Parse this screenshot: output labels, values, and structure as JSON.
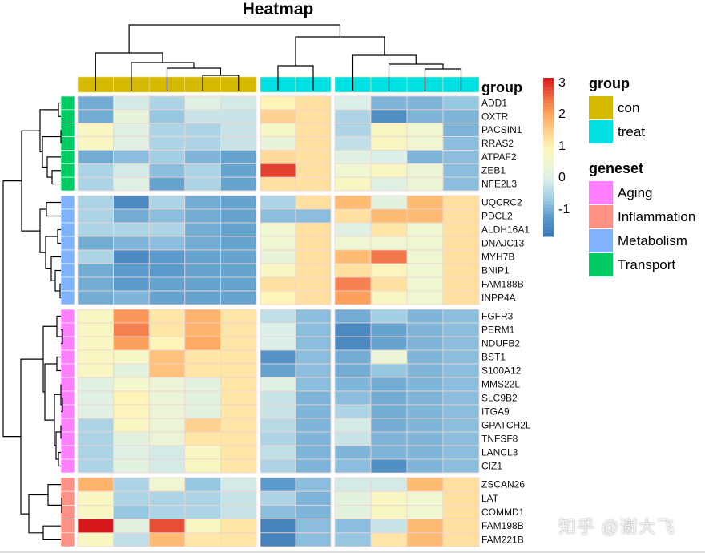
{
  "chart_data": {
    "type": "heatmap",
    "title": "Heatmap",
    "column_annotation_title": "group",
    "column_groups": [
      "con",
      "con",
      "con",
      "con",
      "con",
      "treat",
      "treat",
      "treat",
      "treat",
      "treat",
      "treat"
    ],
    "column_split_sizes": [
      5,
      2,
      4
    ],
    "row_blocks": [
      {
        "geneset": "Transport",
        "genes": [
          "ADD1",
          "OXTR",
          "PACSIN1",
          "RRAS2",
          "ATPAF2",
          "ZEB1",
          "NFE2L3"
        ]
      },
      {
        "geneset": "Metabolism",
        "genes": [
          "UQCRC2",
          "PDCL2",
          "ALDH16A1",
          "DNAJC13",
          "MYH7B",
          "BNIP1",
          "FAM188B",
          "INPP4A"
        ]
      },
      {
        "geneset": "Aging",
        "genes": [
          "FGFR3",
          "PERM1",
          "NDUFB2",
          "BST1",
          "S100A12",
          "MMS22L",
          "SLC9B2",
          "ITGA9",
          "GPATCH2L",
          "TNFSF8",
          "LANCL3",
          "CIZ1"
        ]
      },
      {
        "geneset": "Inflammation",
        "genes": [
          "ZSCAN26",
          "LAT",
          "COMMD1",
          "FAM198B",
          "FAM221B"
        ]
      }
    ],
    "values": [
      [
        -1.0,
        -0.1,
        -0.5,
        0.1,
        -0.1,
        1.0,
        1.3,
        0.0,
        -0.9,
        -0.9,
        -0.7
      ],
      [
        -1.0,
        0.3,
        -0.7,
        -0.2,
        -0.2,
        1.5,
        1.3,
        -0.5,
        -1.4,
        -0.9,
        -0.9
      ],
      [
        0.8,
        0.1,
        -0.5,
        -0.5,
        -0.2,
        0.7,
        1.3,
        -0.5,
        0.8,
        0.5,
        -0.9
      ],
      [
        0.8,
        0.1,
        -0.5,
        -0.5,
        -0.2,
        0.3,
        1.3,
        -0.3,
        0.8,
        0.5,
        -0.8
      ],
      [
        -1.0,
        -0.8,
        -0.6,
        -0.9,
        -1.1,
        1.4,
        1.3,
        0.1,
        0.0,
        -0.9,
        -0.8
      ],
      [
        -0.5,
        -0.1,
        -0.8,
        -0.5,
        -1.1,
        2.9,
        1.3,
        0.5,
        0.8,
        0.4,
        -0.8
      ],
      [
        -0.5,
        0.1,
        -1.1,
        -0.5,
        -1.1,
        1.3,
        1.3,
        0.8,
        0.1,
        0.4,
        -0.8
      ],
      [
        -0.5,
        -1.5,
        -0.5,
        -1.0,
        -1.1,
        -0.5,
        1.3,
        1.8,
        0.2,
        1.8,
        1.3
      ],
      [
        -0.5,
        -1.0,
        -0.8,
        -1.0,
        -1.1,
        -0.8,
        -0.8,
        1.3,
        1.8,
        1.8,
        1.3
      ],
      [
        -0.5,
        -0.5,
        -0.5,
        -1.0,
        -1.1,
        0.5,
        1.3,
        0.1,
        1.2,
        0.5,
        1.3
      ],
      [
        -1.0,
        -0.9,
        -0.8,
        -1.0,
        -1.1,
        0.5,
        1.3,
        0.5,
        0.5,
        0.5,
        1.3
      ],
      [
        -0.5,
        -1.5,
        -1.2,
        -1.1,
        -1.1,
        0.3,
        1.3,
        1.8,
        2.5,
        0.5,
        1.3
      ],
      [
        -1.0,
        -1.2,
        -1.2,
        -1.1,
        -1.1,
        0.8,
        1.3,
        1.3,
        0.9,
        0.5,
        1.3
      ],
      [
        -1.0,
        -1.2,
        -1.1,
        -1.1,
        -1.1,
        1.3,
        1.3,
        2.4,
        1.3,
        0.5,
        1.3
      ],
      [
        -1.0,
        -0.9,
        -1.1,
        -1.1,
        -1.1,
        1.0,
        1.3,
        2.1,
        0.8,
        0.5,
        1.3
      ],
      [
        0.8,
        2.2,
        1.2,
        1.9,
        1.2,
        -0.3,
        -0.8,
        -1.0,
        -0.6,
        -0.9,
        -0.8
      ],
      [
        0.8,
        2.4,
        1.2,
        1.9,
        1.2,
        0.0,
        -0.8,
        -1.5,
        -1.1,
        -0.9,
        -0.8
      ],
      [
        0.8,
        2.1,
        1.0,
        2.0,
        1.2,
        0.0,
        -0.8,
        -1.5,
        -1.1,
        -0.9,
        -0.8
      ],
      [
        0.8,
        0.7,
        1.7,
        1.2,
        1.2,
        -1.3,
        -0.8,
        -1.0,
        0.4,
        -0.9,
        -0.8
      ],
      [
        0.8,
        0.2,
        1.7,
        1.2,
        1.2,
        -1.1,
        -0.8,
        -1.0,
        -0.7,
        -0.9,
        -0.8
      ],
      [
        0.1,
        0.6,
        0.4,
        0.2,
        1.2,
        0.1,
        -0.8,
        -0.9,
        -1.0,
        -0.9,
        -0.8
      ],
      [
        0.1,
        1.0,
        0.4,
        0.2,
        1.2,
        -0.2,
        -0.9,
        -0.8,
        -1.0,
        -0.9,
        -0.8
      ],
      [
        0.1,
        0.9,
        0.4,
        0.2,
        1.2,
        -0.2,
        -0.9,
        -0.5,
        -1.0,
        -0.9,
        -0.8
      ],
      [
        -0.5,
        0.8,
        0.4,
        1.5,
        1.2,
        -0.4,
        -0.9,
        -0.1,
        -1.0,
        -0.9,
        -0.8
      ],
      [
        -0.5,
        0.2,
        0.4,
        1.2,
        1.2,
        -0.5,
        -0.9,
        -0.2,
        -0.9,
        -0.9,
        -0.8
      ],
      [
        -0.5,
        0.1,
        -0.1,
        0.8,
        1.2,
        -0.3,
        -0.9,
        -0.9,
        -0.9,
        -0.9,
        -0.8
      ],
      [
        -0.5,
        0.2,
        -0.1,
        0.8,
        1.2,
        -0.5,
        -0.9,
        -0.8,
        -1.4,
        -0.9,
        -0.8
      ],
      [
        1.9,
        -0.5,
        0.5,
        -0.7,
        -0.1,
        -1.2,
        -0.8,
        -0.1,
        -0.1,
        1.8,
        1.3
      ],
      [
        0.8,
        -0.5,
        -0.5,
        -0.5,
        -0.2,
        -0.5,
        -0.9,
        0.2,
        0.8,
        0.5,
        1.3
      ],
      [
        0.8,
        -0.7,
        -0.5,
        -0.5,
        -0.2,
        -0.8,
        -0.9,
        0.2,
        0.8,
        0.5,
        1.3
      ],
      [
        3.2,
        0.2,
        2.8,
        0.8,
        1.2,
        -1.6,
        -0.8,
        -0.8,
        -0.2,
        1.8,
        1.3
      ],
      [
        0.8,
        -0.3,
        1.8,
        1.2,
        1.2,
        -1.6,
        -0.8,
        -0.7,
        1.2,
        1.8,
        1.3
      ]
    ],
    "color_scale": {
      "range": [
        -1.8,
        3.2
      ],
      "tick_labels": [
        "3",
        "2",
        "1",
        "0",
        "-1"
      ],
      "ticks": [
        3,
        2,
        1,
        0,
        -1
      ],
      "stops": [
        [
          -1.8,
          "#3a78b5"
        ],
        [
          -1.2,
          "#5b9acb"
        ],
        [
          -0.6,
          "#a3cfe4"
        ],
        [
          0,
          "#dcefe8"
        ],
        [
          0.6,
          "#f2f8cc"
        ],
        [
          1,
          "#fef4b8"
        ],
        [
          1.5,
          "#fed290"
        ],
        [
          2,
          "#fdab62"
        ],
        [
          2.5,
          "#f2774a"
        ],
        [
          3.2,
          "#d7191c"
        ]
      ]
    },
    "legend": {
      "group_title": "group",
      "group_items": [
        {
          "label": "con",
          "color": "#d5b800"
        },
        {
          "label": "treat",
          "color": "#00dfe2"
        }
      ],
      "geneset_title": "geneset",
      "geneset_items": [
        {
          "label": "Aging",
          "color": "#ff80ff"
        },
        {
          "label": "Inflammation",
          "color": "#ff9185"
        },
        {
          "label": "Metabolism",
          "color": "#80b2ff"
        },
        {
          "label": "Transport",
          "color": "#00cc63"
        }
      ],
      "placement": "right"
    }
  },
  "watermark": "知乎 @谢大飞"
}
